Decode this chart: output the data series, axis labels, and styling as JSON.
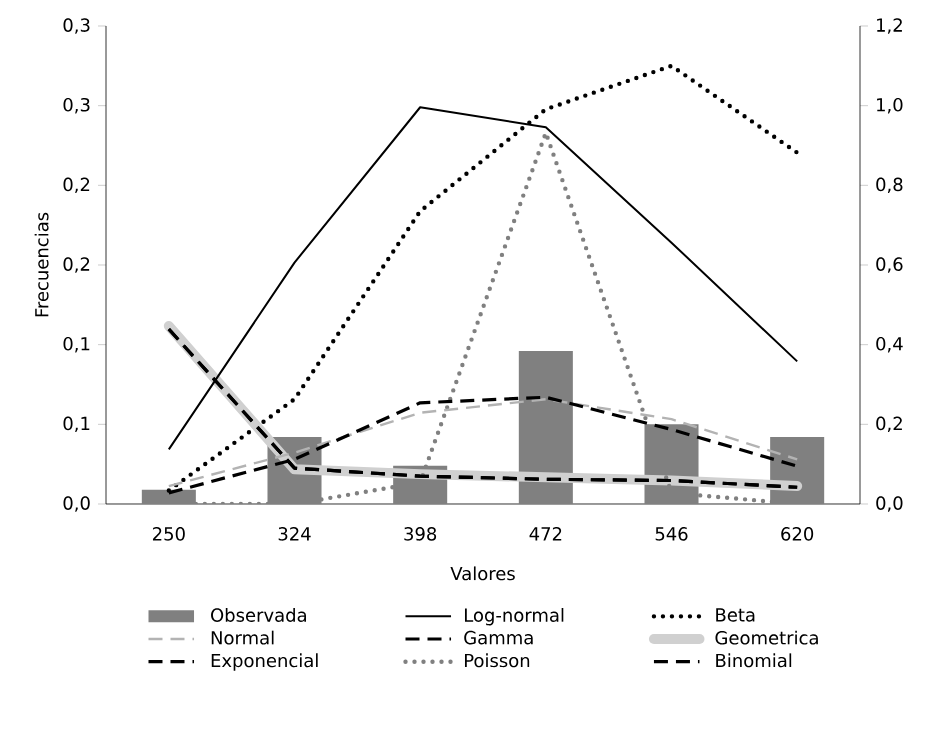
{
  "chart_data": {
    "type": "line",
    "xlabel": "Valores",
    "ylabel": "Frecuencias",
    "categories": [
      "250",
      "324",
      "398",
      "472",
      "546",
      "620"
    ],
    "ylim": [
      0,
      0.3
    ],
    "yticks": [
      {
        "value": 0,
        "label": "0,0"
      },
      {
        "value": 0.05,
        "label": "0,1"
      },
      {
        "value": 0.1,
        "label": "0,1"
      },
      {
        "value": 0.15,
        "label": "0,2"
      },
      {
        "value": 0.2,
        "label": "0,2"
      },
      {
        "value": 0.25,
        "label": "0,3"
      },
      {
        "value": 0.3,
        "label": "0,3"
      }
    ],
    "y2lim": [
      0,
      1.2
    ],
    "y2ticks": [
      {
        "value": 0,
        "label": "0,0"
      },
      {
        "value": 0.2,
        "label": "0,2"
      },
      {
        "value": 0.4,
        "label": "0,4"
      },
      {
        "value": 0.6,
        "label": "0,6"
      },
      {
        "value": 0.8,
        "label": "0,8"
      },
      {
        "value": 1.0,
        "label": "1,0"
      },
      {
        "value": 1.2,
        "label": "1,2"
      }
    ],
    "legend": "bottom",
    "series": [
      {
        "name": "Observada",
        "type": "bar",
        "color": "#808080",
        "values": [
          0.009,
          0.042,
          0.024,
          0.096,
          0.05,
          0.042
        ]
      },
      {
        "name": "Log-normal",
        "axis": "y2",
        "color": "#000000",
        "line_style": "solid",
        "values": [
          0.137,
          0.606,
          0.996,
          0.946,
          0.656,
          0.358
        ]
      },
      {
        "name": "Beta",
        "axis": "y2",
        "color": "#000000",
        "line_style": "dotted",
        "values": [
          0.034,
          0.263,
          0.735,
          0.991,
          1.1,
          0.882
        ]
      },
      {
        "name": "Normal",
        "axis": "y2",
        "color": "#b3b3b3",
        "line_style": "dashed",
        "values": [
          0.045,
          0.129,
          0.229,
          0.263,
          0.213,
          0.112
        ]
      },
      {
        "name": "Gamma",
        "axis": "y2",
        "color": "#000000",
        "line_style": "dashed",
        "values": [
          0.439,
          0.09,
          0.07,
          0.062,
          0.059,
          0.042
        ]
      },
      {
        "name": "Geometrica",
        "axis": "y2",
        "color": "#d0d0d0",
        "line_style": "solid",
        "values": [
          0.447,
          0.087,
          0.075,
          0.067,
          0.059,
          0.045
        ]
      },
      {
        "name": "Exponencial",
        "axis": "y2",
        "color": "#000000",
        "line_style": "dashed",
        "values": [
          0.439,
          0.09,
          0.07,
          0.062,
          0.059,
          0.042
        ]
      },
      {
        "name": "Poisson",
        "axis": "y2",
        "color": "#808080",
        "line_style": "dotted",
        "values": [
          0,
          0,
          0.054,
          0.932,
          0.028,
          0
        ]
      },
      {
        "name": "Binomial",
        "axis": "y2",
        "color": "#000000",
        "line_style": "dashed",
        "values": [
          0.028,
          0.112,
          0.254,
          0.268,
          0.187,
          0.095
        ]
      }
    ]
  }
}
